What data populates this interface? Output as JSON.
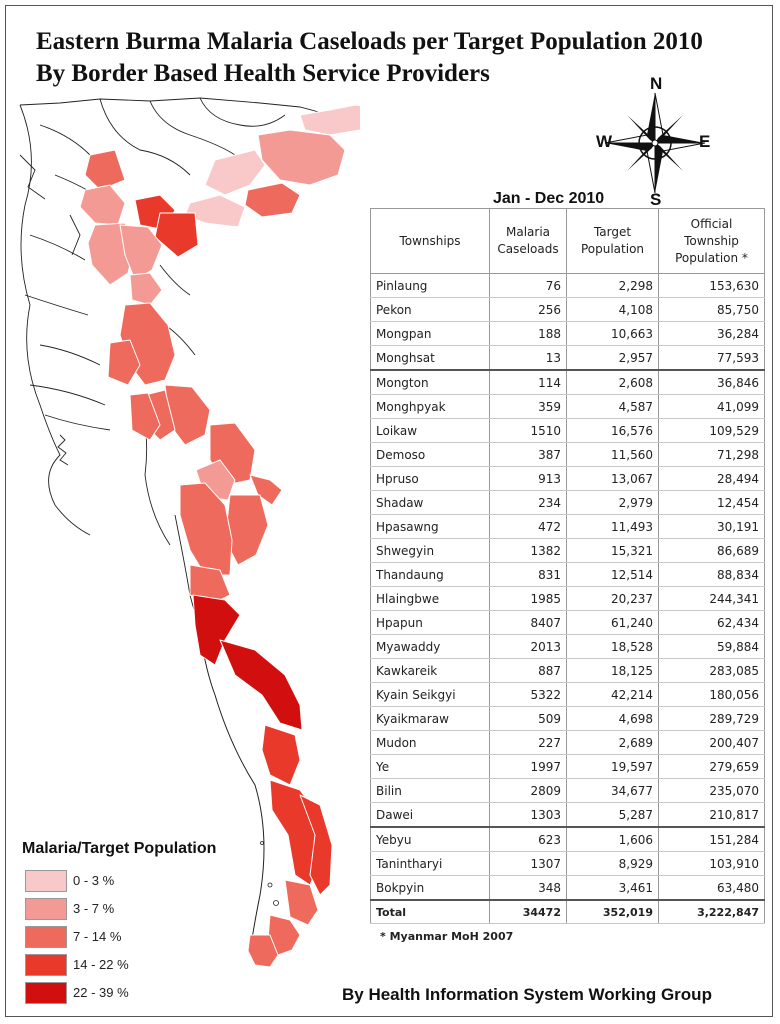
{
  "title": {
    "line1": "Eastern Burma Malaria Caseloads per Target Population 2010",
    "line2": "By Border Based Health Service Providers"
  },
  "compass": {
    "n": "N",
    "s": "S",
    "e": "E",
    "w": "W"
  },
  "period": "Jan - Dec 2010",
  "table": {
    "headers": [
      "Townships",
      "Malaria Caseloads",
      "Target Population",
      "Official Township Population *"
    ],
    "rows": [
      [
        "Pinlaung",
        "76",
        "2,298",
        "153,630"
      ],
      [
        "Pekon",
        "256",
        "4,108",
        "85,750"
      ],
      [
        "Mongpan",
        "188",
        "10,663",
        "36,284"
      ],
      [
        "Monghsat",
        "13",
        "2,957",
        "77,593"
      ],
      [
        "Mongton",
        "114",
        "2,608",
        "36,846"
      ],
      [
        "Monghpyak",
        "359",
        "4,587",
        "41,099"
      ],
      [
        "Loikaw",
        "1510",
        "16,576",
        "109,529"
      ],
      [
        "Demoso",
        "387",
        "11,560",
        "71,298"
      ],
      [
        "Hpruso",
        "913",
        "13,067",
        "28,494"
      ],
      [
        "Shadaw",
        "234",
        "2,979",
        "12,454"
      ],
      [
        "Hpasawng",
        "472",
        "11,493",
        "30,191"
      ],
      [
        "Shwegyin",
        "1382",
        "15,321",
        "86,689"
      ],
      [
        "Thandaung",
        "831",
        "12,514",
        "88,834"
      ],
      [
        "Hlaingbwe",
        "1985",
        "20,237",
        "244,341"
      ],
      [
        "Hpapun",
        "8407",
        "61,240",
        "62,434"
      ],
      [
        "Myawaddy",
        "2013",
        "18,528",
        "59,884"
      ],
      [
        "Kawkareik",
        "887",
        "18,125",
        "283,085"
      ],
      [
        "Kyain Seikgyi",
        "5322",
        "42,214",
        "180,056"
      ],
      [
        "Kyaikmaraw",
        "509",
        "4,698",
        "289,729"
      ],
      [
        "Mudon",
        "227",
        "2,689",
        "200,407"
      ],
      [
        "Ye",
        "1997",
        "19,597",
        "279,659"
      ],
      [
        "Bilin",
        "2809",
        "34,677",
        "235,070"
      ],
      [
        "Dawei",
        "1303",
        "5,287",
        "210,817"
      ],
      [
        "Yebyu",
        "623",
        "1,606",
        "151,284"
      ],
      [
        "Tanintharyi",
        "1307",
        "8,929",
        "103,910"
      ],
      [
        "Bokpyin",
        "348",
        "3,461",
        "63,480"
      ]
    ],
    "total": [
      "Total",
      "34472",
      "352,019",
      "3,222,847"
    ]
  },
  "footnote": "* Myanmar MoH 2007",
  "legend": {
    "title": "Malaria/Target Population",
    "items": [
      {
        "label": "0 - 3 %",
        "color": "#f9c9c9"
      },
      {
        "label": "3 - 7 %",
        "color": "#f49a95"
      },
      {
        "label": "7 - 14 %",
        "color": "#ee6a5c"
      },
      {
        "label": "14 - 22 %",
        "color": "#e8392b"
      },
      {
        "label": "22 - 39 %",
        "color": "#d10f0f"
      }
    ]
  },
  "credit": "By Health Information System Working Group"
}
